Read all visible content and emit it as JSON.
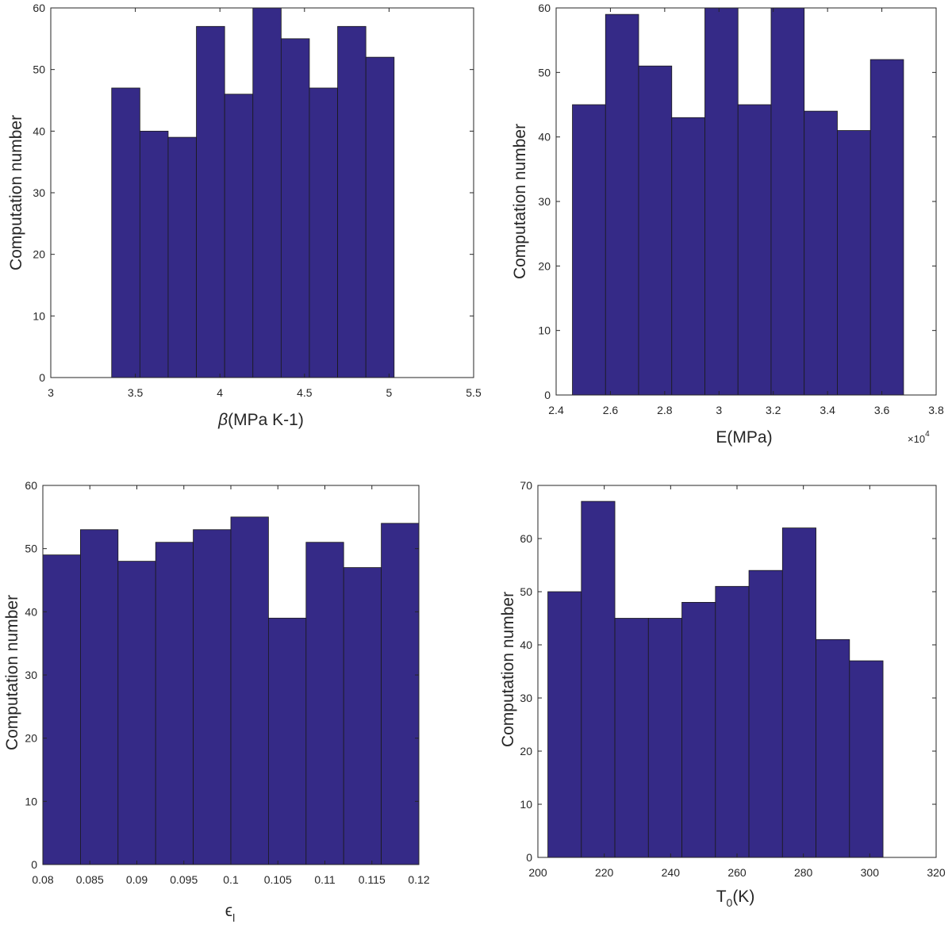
{
  "colors": {
    "bar_fill": "#352A87",
    "bar_edge": "#1a1a1a",
    "axis": "#262626",
    "background": "#ffffff"
  },
  "chart_data": [
    {
      "type": "bar",
      "bin_edges": [
        3.36,
        3.527,
        3.694,
        3.861,
        4.028,
        4.195,
        4.362,
        4.529,
        4.696,
        4.863,
        5.03
      ],
      "values": [
        47,
        40,
        39,
        57,
        46,
        60,
        55,
        47,
        57,
        52
      ],
      "xlim": [
        3,
        5.5
      ],
      "ylim": [
        0,
        60
      ],
      "xticks": [
        3,
        3.5,
        4,
        4.5,
        5,
        5.5
      ],
      "xtick_labels": [
        "3",
        "3.5",
        "4",
        "4.5",
        "5",
        "5.5"
      ],
      "yticks": [
        0,
        10,
        20,
        30,
        40,
        50,
        60
      ],
      "ytick_labels": [
        "0",
        "10",
        "20",
        "30",
        "40",
        "50",
        "60"
      ],
      "xlabel_symbol": "β",
      "xlabel": "(MPa K-1)",
      "ylabel": "Computation number",
      "grid": false
    },
    {
      "type": "bar",
      "bin_edges": [
        24600,
        25820,
        27040,
        28260,
        29480,
        30700,
        31920,
        33140,
        34360,
        35580,
        36800
      ],
      "values": [
        45,
        59,
        51,
        43,
        60,
        45,
        60,
        44,
        41,
        52
      ],
      "xlim": [
        24000,
        38000
      ],
      "ylim": [
        0,
        60
      ],
      "xticks": [
        24000,
        26000,
        28000,
        30000,
        32000,
        34000,
        36000,
        38000
      ],
      "xtick_labels": [
        "2.4",
        "2.6",
        "2.8",
        "3",
        "3.2",
        "3.4",
        "3.6",
        "3.8"
      ],
      "yticks": [
        0,
        10,
        20,
        30,
        40,
        50,
        60
      ],
      "ytick_labels": [
        "0",
        "10",
        "20",
        "30",
        "40",
        "50",
        "60"
      ],
      "xlabel": "E(MPa)",
      "x_exponent_base": "×10",
      "x_exponent_power": "4",
      "ylabel": "Computation number",
      "grid": false
    },
    {
      "type": "bar",
      "bin_edges": [
        0.08,
        0.084,
        0.088,
        0.092,
        0.096,
        0.1,
        0.104,
        0.108,
        0.112,
        0.116,
        0.12
      ],
      "values": [
        49,
        53,
        48,
        51,
        53,
        55,
        39,
        51,
        47,
        54
      ],
      "xlim": [
        0.08,
        0.12
      ],
      "ylim": [
        0,
        60
      ],
      "xticks": [
        0.08,
        0.085,
        0.09,
        0.095,
        0.1,
        0.105,
        0.11,
        0.115,
        0.12
      ],
      "xtick_labels": [
        "0.08",
        "0.085",
        "0.09",
        "0.095",
        "0.1",
        "0.105",
        "0.11",
        "0.115",
        "0.12"
      ],
      "yticks": [
        0,
        10,
        20,
        30,
        40,
        50,
        60
      ],
      "ytick_labels": [
        "0",
        "10",
        "20",
        "30",
        "40",
        "50",
        "60"
      ],
      "xlabel_symbol": "ϵ",
      "xlabel_sub": "l",
      "ylabel": "Computation number",
      "grid": false
    },
    {
      "type": "bar",
      "bin_edges": [
        203,
        213.1,
        223.2,
        233.3,
        243.4,
        253.5,
        263.6,
        273.7,
        283.8,
        293.9,
        304
      ],
      "values": [
        50,
        67,
        45,
        45,
        48,
        51,
        54,
        62,
        41,
        37
      ],
      "xlim": [
        200,
        320
      ],
      "ylim": [
        0,
        70
      ],
      "xticks": [
        200,
        220,
        240,
        260,
        280,
        300,
        320
      ],
      "xtick_labels": [
        "200",
        "220",
        "240",
        "260",
        "280",
        "300",
        "320"
      ],
      "yticks": [
        0,
        10,
        20,
        30,
        40,
        50,
        60,
        70
      ],
      "ytick_labels": [
        "0",
        "10",
        "20",
        "30",
        "40",
        "50",
        "60",
        "70"
      ],
      "xlabel_main": "T",
      "xlabel_sub": "0",
      "xlabel_tail": "(K)",
      "ylabel": "Computation number",
      "grid": false
    }
  ]
}
